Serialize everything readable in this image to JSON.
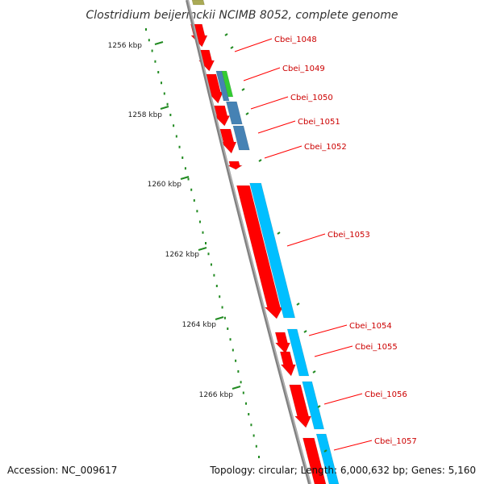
{
  "title": "Clostridium beijerinckii NCIMB 8052, complete genome",
  "footer": {
    "accession": "Accession: NC_009617",
    "summary": "Topology: circular; Length: 6,000,632 bp; Genes: 5,160"
  },
  "colors": {
    "backbone": "#808080",
    "forward_cds": "#ff0000",
    "reverse_cds": "#00bfff",
    "reverse_cds_alt": "#4682b4",
    "other_feature": "#33cc33",
    "upstream_feature": "#aaaa55",
    "tick": "#228B22",
    "label_line": "#ff0000"
  },
  "kbp_ticks": [
    {
      "kbp": 1256,
      "label": "1256 kbp"
    },
    {
      "kbp": 1258,
      "label": "1258 kbp"
    },
    {
      "kbp": 1260,
      "label": "1260 kbp"
    },
    {
      "kbp": 1262,
      "label": "1262 kbp"
    },
    {
      "kbp": 1264,
      "label": "1264 kbp"
    },
    {
      "kbp": 1266,
      "label": "1266 kbp"
    }
  ],
  "gene_labels": [
    {
      "name": "Cbei_1048"
    },
    {
      "name": "Cbei_1049"
    },
    {
      "name": "Cbei_1050"
    },
    {
      "name": "Cbei_1051"
    },
    {
      "name": "Cbei_1052"
    },
    {
      "name": "Cbei_1053"
    },
    {
      "name": "Cbei_1054"
    },
    {
      "name": "Cbei_1055"
    },
    {
      "name": "Cbei_1056"
    },
    {
      "name": "Cbei_1057"
    }
  ]
}
